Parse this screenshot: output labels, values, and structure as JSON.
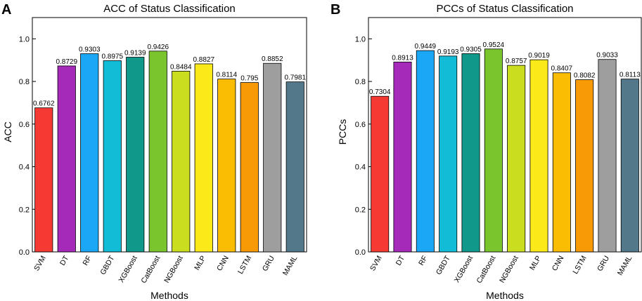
{
  "chart_data": [
    {
      "type": "bar",
      "panel_letter": "A",
      "title": "ACC of Status Classification",
      "xlabel": "Methods",
      "ylabel": "ACC",
      "ylim": [
        0,
        1.1
      ],
      "yticks": [
        0.0,
        0.2,
        0.4,
        0.6,
        0.8,
        1.0
      ],
      "ytick_labels": [
        "0.0",
        "0.2",
        "0.4",
        "0.6",
        "0.8",
        "1.0"
      ],
      "categories": [
        "SVM",
        "DT",
        "RF",
        "GBDT",
        "XGBoost",
        "CatBoost",
        "NGBoost",
        "MLP",
        "CNN",
        "LSTM",
        "GRU",
        "MAML"
      ],
      "values": [
        0.6762,
        0.8729,
        0.9303,
        0.8975,
        0.9139,
        0.9426,
        0.8484,
        0.8827,
        0.8114,
        0.795,
        0.8852,
        0.7981
      ],
      "value_labels": [
        "0.6762",
        "0.8729",
        "0.9303",
        "0.8975",
        "0.9139",
        "0.9426",
        "0.8484",
        "0.8827",
        "0.8114",
        "0.795",
        "0.8852",
        "0.7981"
      ],
      "colors": [
        "#f53a33",
        "#a52aba",
        "#1aa7f5",
        "#13bcd6",
        "#10988a",
        "#7ac52e",
        "#cadd1e",
        "#fbe91a",
        "#fbbc04",
        "#f79a05",
        "#9e9e9e",
        "#52788a"
      ]
    },
    {
      "type": "bar",
      "panel_letter": "B",
      "title": "PCCs of Status Classification",
      "xlabel": "Methods",
      "ylabel": "PCCs",
      "ylim": [
        0,
        1.1
      ],
      "yticks": [
        0.0,
        0.2,
        0.4,
        0.6,
        0.8,
        1.0
      ],
      "ytick_labels": [
        "0.0",
        "0.2",
        "0.4",
        "0.6",
        "0.8",
        "1.0"
      ],
      "categories": [
        "SVM",
        "DT",
        "RF",
        "GBDT",
        "XGBoost",
        "CatBoost",
        "NGBoost",
        "MLP",
        "CNN",
        "LSTM",
        "GRU",
        "MAML"
      ],
      "values": [
        0.7304,
        0.8913,
        0.9449,
        0.9193,
        0.9305,
        0.9524,
        0.8757,
        0.9019,
        0.8407,
        0.8082,
        0.9033,
        0.8113
      ],
      "value_labels": [
        "0.7304",
        "0.8913",
        "0.9449",
        "0.9193",
        "0.9305",
        "0.9524",
        "0.8757",
        "0.9019",
        "0.8407",
        "0.8082",
        "0.9033",
        "0.8113"
      ],
      "colors": [
        "#f53a33",
        "#a52aba",
        "#1aa7f5",
        "#13bcd6",
        "#10988a",
        "#7ac52e",
        "#cadd1e",
        "#fbe91a",
        "#fbbc04",
        "#f79a05",
        "#9e9e9e",
        "#52788a"
      ]
    }
  ]
}
